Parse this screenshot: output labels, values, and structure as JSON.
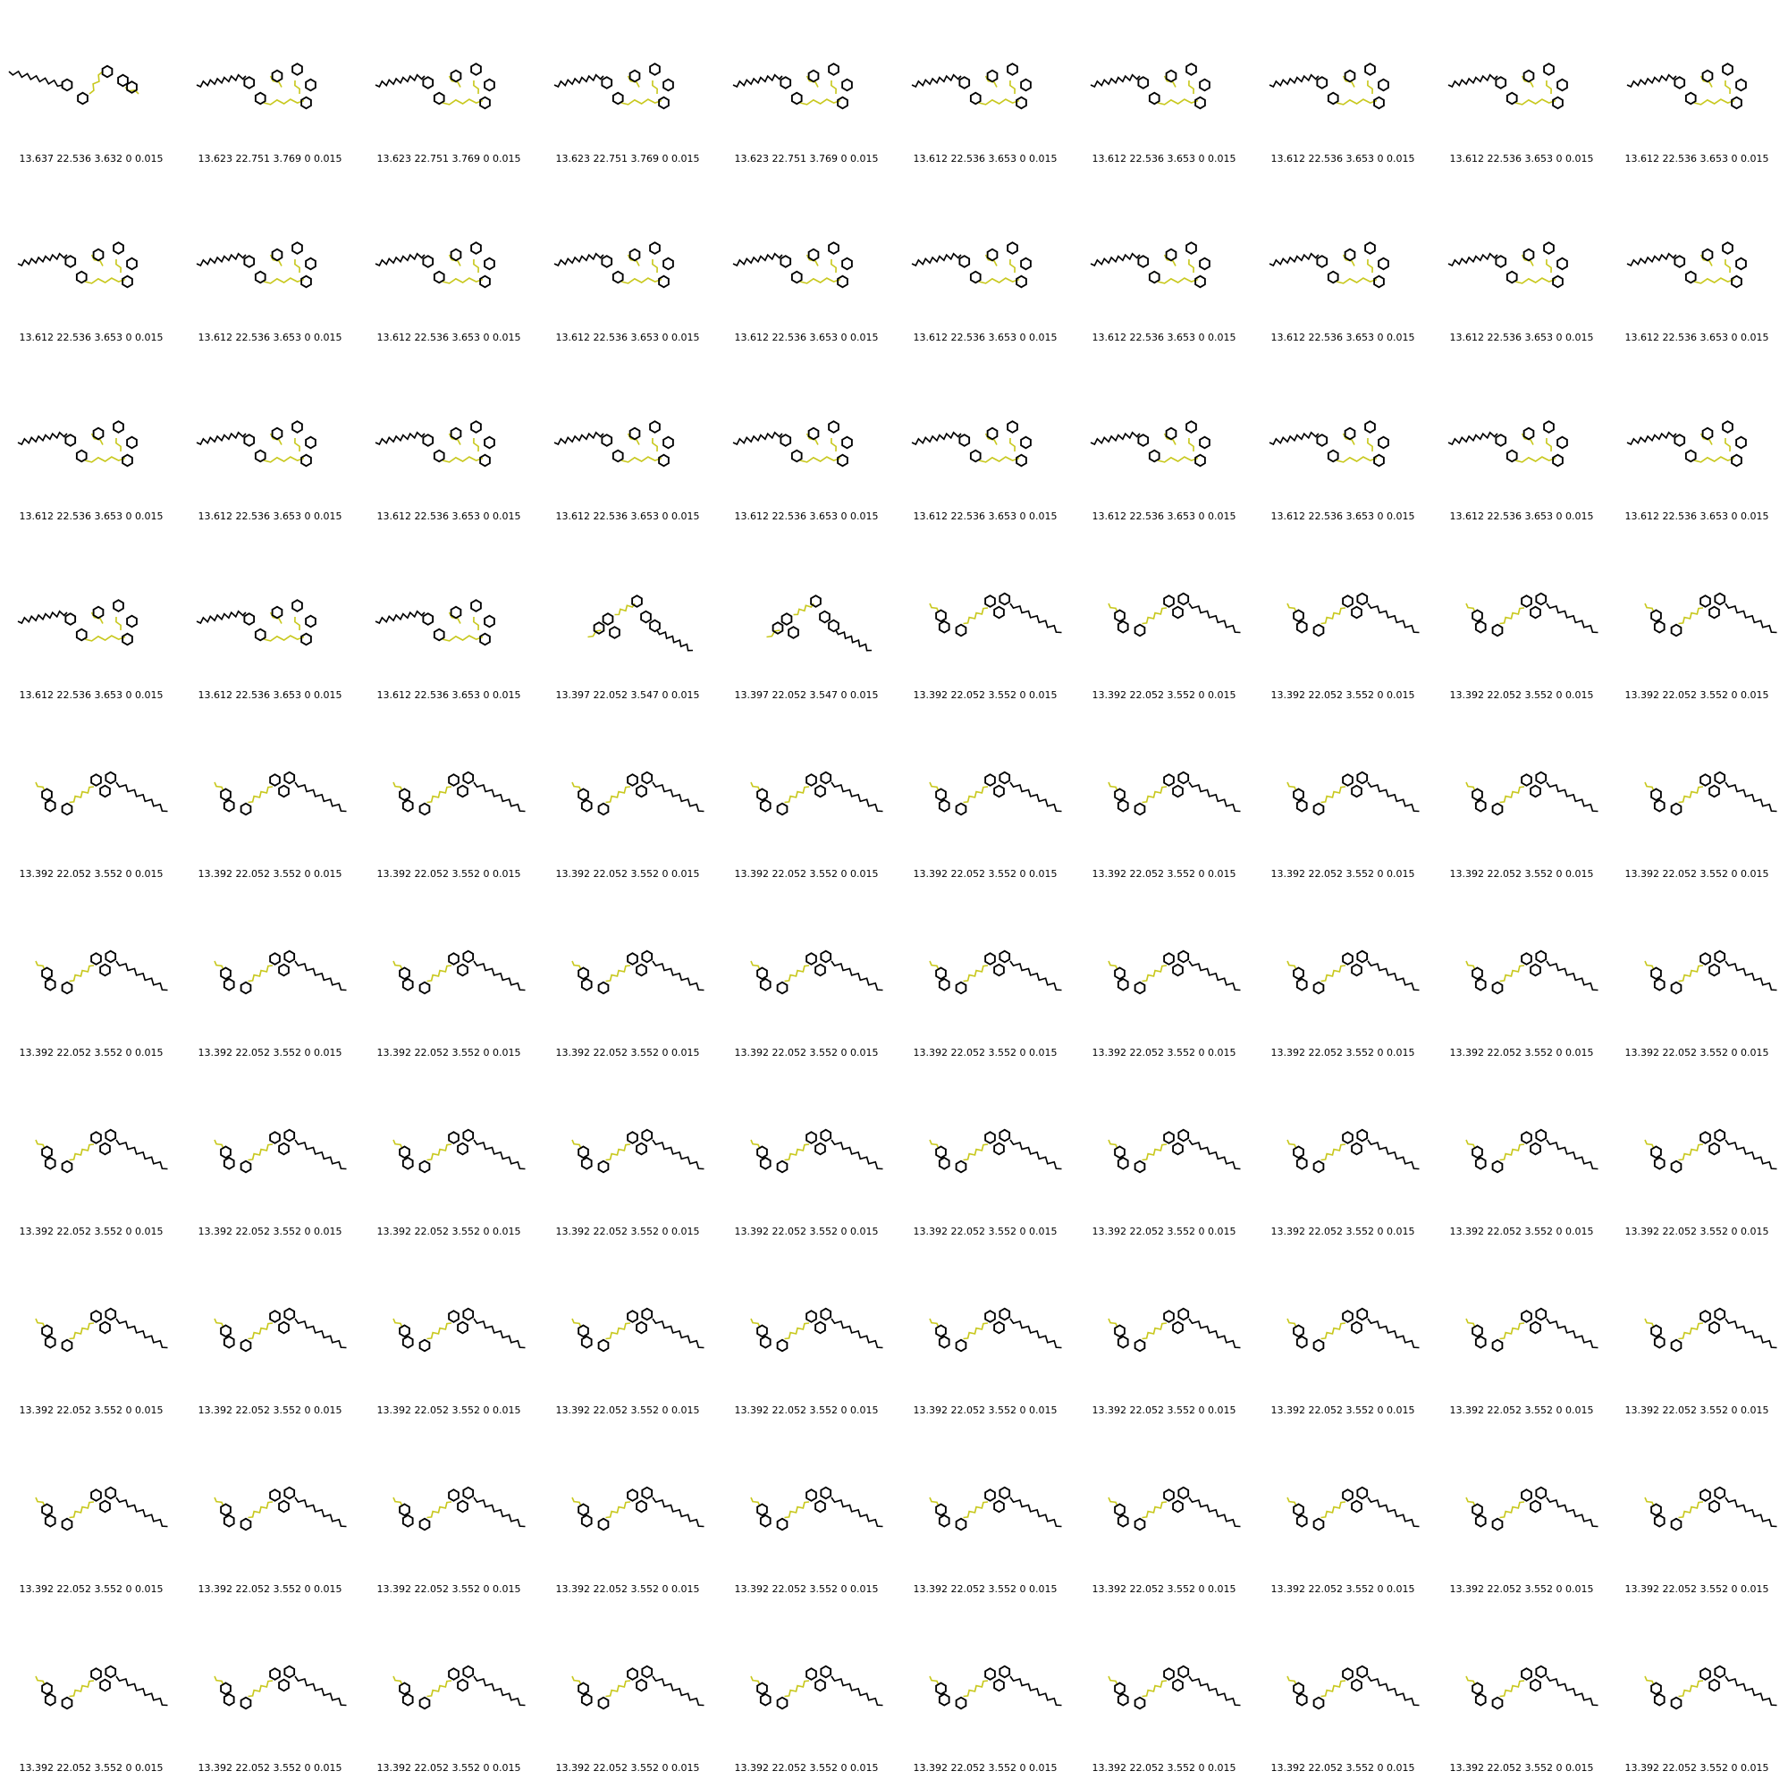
{
  "colors": {
    "hydrocarbon": "#000000",
    "sulfur_chain": "#c8c81e",
    "heteroatom": "#d23232"
  },
  "grid": {
    "rows": 10,
    "cols": 10
  },
  "cells": [
    {
      "caption": "13.637 22.536 3.632 0 0.015",
      "molecule": "macrocycle-open"
    },
    {
      "caption": "13.623 22.751 3.769 0 0.015",
      "molecule": "macrocycle"
    },
    {
      "caption": "13.623 22.751 3.769 0 0.015",
      "molecule": "macrocycle"
    },
    {
      "caption": "13.623 22.751 3.769 0 0.015",
      "molecule": "macrocycle"
    },
    {
      "caption": "13.623 22.751 3.769 0 0.015",
      "molecule": "macrocycle"
    },
    {
      "caption": "13.612 22.536 3.653 0 0.015",
      "molecule": "macrocycle"
    },
    {
      "caption": "13.612 22.536 3.653 0 0.015",
      "molecule": "macrocycle"
    },
    {
      "caption": "13.612 22.536 3.653 0 0.015",
      "molecule": "macrocycle"
    },
    {
      "caption": "13.612 22.536 3.653 0 0.015",
      "molecule": "macrocycle"
    },
    {
      "caption": "13.612 22.536 3.653 0 0.015",
      "molecule": "macrocycle"
    },
    {
      "caption": "13.612 22.536 3.653 0 0.015",
      "molecule": "macrocycle"
    },
    {
      "caption": "13.612 22.536 3.653 0 0.015",
      "molecule": "macrocycle"
    },
    {
      "caption": "13.612 22.536 3.653 0 0.015",
      "molecule": "macrocycle"
    },
    {
      "caption": "13.612 22.536 3.653 0 0.015",
      "molecule": "macrocycle"
    },
    {
      "caption": "13.612 22.536 3.653 0 0.015",
      "molecule": "macrocycle"
    },
    {
      "caption": "13.612 22.536 3.653 0 0.015",
      "molecule": "macrocycle"
    },
    {
      "caption": "13.612 22.536 3.653 0 0.015",
      "molecule": "macrocycle"
    },
    {
      "caption": "13.612 22.536 3.653 0 0.015",
      "molecule": "macrocycle"
    },
    {
      "caption": "13.612 22.536 3.653 0 0.015",
      "molecule": "macrocycle"
    },
    {
      "caption": "13.612 22.536 3.653 0 0.015",
      "molecule": "macrocycle"
    },
    {
      "caption": "13.612 22.536 3.653 0 0.015",
      "molecule": "macrocycle"
    },
    {
      "caption": "13.612 22.536 3.653 0 0.015",
      "molecule": "macrocycle"
    },
    {
      "caption": "13.612 22.536 3.653 0 0.015",
      "molecule": "macrocycle"
    },
    {
      "caption": "13.612 22.536 3.653 0 0.015",
      "molecule": "macrocycle"
    },
    {
      "caption": "13.612 22.536 3.653 0 0.015",
      "molecule": "macrocycle"
    },
    {
      "caption": "13.612 22.536 3.653 0 0.015",
      "molecule": "macrocycle"
    },
    {
      "caption": "13.612 22.536 3.653 0 0.015",
      "molecule": "macrocycle"
    },
    {
      "caption": "13.612 22.536 3.653 0 0.015",
      "molecule": "macrocycle"
    },
    {
      "caption": "13.612 22.536 3.653 0 0.015",
      "molecule": "macrocycle"
    },
    {
      "caption": "13.612 22.536 3.653 0 0.015",
      "molecule": "macrocycle"
    },
    {
      "caption": "13.612 22.536 3.653 0 0.015",
      "molecule": "macrocycle"
    },
    {
      "caption": "13.612 22.536 3.653 0 0.015",
      "molecule": "macrocycle"
    },
    {
      "caption": "13.612 22.536 3.653 0 0.015",
      "molecule": "macrocycle"
    },
    {
      "caption": "13.397 22.052 3.547 0 0.015",
      "molecule": "diagonal"
    },
    {
      "caption": "13.397 22.052 3.547 0 0.015",
      "molecule": "diagonal"
    },
    {
      "caption": "13.392 22.052 3.552 0 0.015",
      "molecule": "linear"
    },
    {
      "caption": "13.392 22.052 3.552 0 0.015",
      "molecule": "linear"
    },
    {
      "caption": "13.392 22.052 3.552 0 0.015",
      "molecule": "linear"
    },
    {
      "caption": "13.392 22.052 3.552 0 0.015",
      "molecule": "linear"
    },
    {
      "caption": "13.392 22.052 3.552 0 0.015",
      "molecule": "linear"
    },
    {
      "caption": "13.392 22.052 3.552 0 0.015",
      "molecule": "linear"
    },
    {
      "caption": "13.392 22.052 3.552 0 0.015",
      "molecule": "linear"
    },
    {
      "caption": "13.392 22.052 3.552 0 0.015",
      "molecule": "linear"
    },
    {
      "caption": "13.392 22.052 3.552 0 0.015",
      "molecule": "linear"
    },
    {
      "caption": "13.392 22.052 3.552 0 0.015",
      "molecule": "linear"
    },
    {
      "caption": "13.392 22.052 3.552 0 0.015",
      "molecule": "linear"
    },
    {
      "caption": "13.392 22.052 3.552 0 0.015",
      "molecule": "linear"
    },
    {
      "caption": "13.392 22.052 3.552 0 0.015",
      "molecule": "linear"
    },
    {
      "caption": "13.392 22.052 3.552 0 0.015",
      "molecule": "linear"
    },
    {
      "caption": "13.392 22.052 3.552 0 0.015",
      "molecule": "linear"
    },
    {
      "caption": "13.392 22.052 3.552 0 0.015",
      "molecule": "linear"
    },
    {
      "caption": "13.392 22.052 3.552 0 0.015",
      "molecule": "linear"
    },
    {
      "caption": "13.392 22.052 3.552 0 0.015",
      "molecule": "linear"
    },
    {
      "caption": "13.392 22.052 3.552 0 0.015",
      "molecule": "linear"
    },
    {
      "caption": "13.392 22.052 3.552 0 0.015",
      "molecule": "linear"
    },
    {
      "caption": "13.392 22.052 3.552 0 0.015",
      "molecule": "linear"
    },
    {
      "caption": "13.392 22.052 3.552 0 0.015",
      "molecule": "linear"
    },
    {
      "caption": "13.392 22.052 3.552 0 0.015",
      "molecule": "linear"
    },
    {
      "caption": "13.392 22.052 3.552 0 0.015",
      "molecule": "linear"
    },
    {
      "caption": "13.392 22.052 3.552 0 0.015",
      "molecule": "linear"
    },
    {
      "caption": "13.392 22.052 3.552 0 0.015",
      "molecule": "linear"
    },
    {
      "caption": "13.392 22.052 3.552 0 0.015",
      "molecule": "linear"
    },
    {
      "caption": "13.392 22.052 3.552 0 0.015",
      "molecule": "linear"
    },
    {
      "caption": "13.392 22.052 3.552 0 0.015",
      "molecule": "linear"
    },
    {
      "caption": "13.392 22.052 3.552 0 0.015",
      "molecule": "linear"
    },
    {
      "caption": "13.392 22.052 3.552 0 0.015",
      "molecule": "linear"
    },
    {
      "caption": "13.392 22.052 3.552 0 0.015",
      "molecule": "linear"
    },
    {
      "caption": "13.392 22.052 3.552 0 0.015",
      "molecule": "linear"
    },
    {
      "caption": "13.392 22.052 3.552 0 0.015",
      "molecule": "linear"
    },
    {
      "caption": "13.392 22.052 3.552 0 0.015",
      "molecule": "linear"
    },
    {
      "caption": "13.392 22.052 3.552 0 0.015",
      "molecule": "linear"
    },
    {
      "caption": "13.392 22.052 3.552 0 0.015",
      "molecule": "linear"
    },
    {
      "caption": "13.392 22.052 3.552 0 0.015",
      "molecule": "linear"
    },
    {
      "caption": "13.392 22.052 3.552 0 0.015",
      "molecule": "linear"
    },
    {
      "caption": "13.392 22.052 3.552 0 0.015",
      "molecule": "linear"
    },
    {
      "caption": "13.392 22.052 3.552 0 0.015",
      "molecule": "linear"
    },
    {
      "caption": "13.392 22.052 3.552 0 0.015",
      "molecule": "linear"
    },
    {
      "caption": "13.392 22.052 3.552 0 0.015",
      "molecule": "linear"
    },
    {
      "caption": "13.392 22.052 3.552 0 0.015",
      "molecule": "linear"
    },
    {
      "caption": "13.392 22.052 3.552 0 0.015",
      "molecule": "linear"
    },
    {
      "caption": "13.392 22.052 3.552 0 0.015",
      "molecule": "linear"
    },
    {
      "caption": "13.392 22.052 3.552 0 0.015",
      "molecule": "linear"
    },
    {
      "caption": "13.392 22.052 3.552 0 0.015",
      "molecule": "linear"
    },
    {
      "caption": "13.392 22.052 3.552 0 0.015",
      "molecule": "linear"
    },
    {
      "caption": "13.392 22.052 3.552 0 0.015",
      "molecule": "linear"
    },
    {
      "caption": "13.392 22.052 3.552 0 0.015",
      "molecule": "linear"
    },
    {
      "caption": "13.392 22.052 3.552 0 0.015",
      "molecule": "linear"
    },
    {
      "caption": "13.392 22.052 3.552 0 0.015",
      "molecule": "linear"
    },
    {
      "caption": "13.392 22.052 3.552 0 0.015",
      "molecule": "linear"
    },
    {
      "caption": "13.392 22.052 3.552 0 0.015",
      "molecule": "linear"
    },
    {
      "caption": "13.392 22.052 3.552 0 0.015",
      "molecule": "linear"
    },
    {
      "caption": "13.392 22.052 3.552 0 0.015",
      "molecule": "linear"
    },
    {
      "caption": "13.392 22.052 3.552 0 0.015",
      "molecule": "linear"
    },
    {
      "caption": "13.392 22.052 3.552 0 0.015",
      "molecule": "linear"
    },
    {
      "caption": "13.392 22.052 3.552 0 0.015",
      "molecule": "linear"
    },
    {
      "caption": "13.392 22.052 3.552 0 0.015",
      "molecule": "linear"
    },
    {
      "caption": "13.392 22.052 3.552 0 0.015",
      "molecule": "linear"
    },
    {
      "caption": "13.392 22.052 3.552 0 0.015",
      "molecule": "linear"
    },
    {
      "caption": "13.392 22.052 3.552 0 0.015",
      "molecule": "linear"
    },
    {
      "caption": "13.392 22.052 3.552 0 0.015",
      "molecule": "linear"
    }
  ]
}
